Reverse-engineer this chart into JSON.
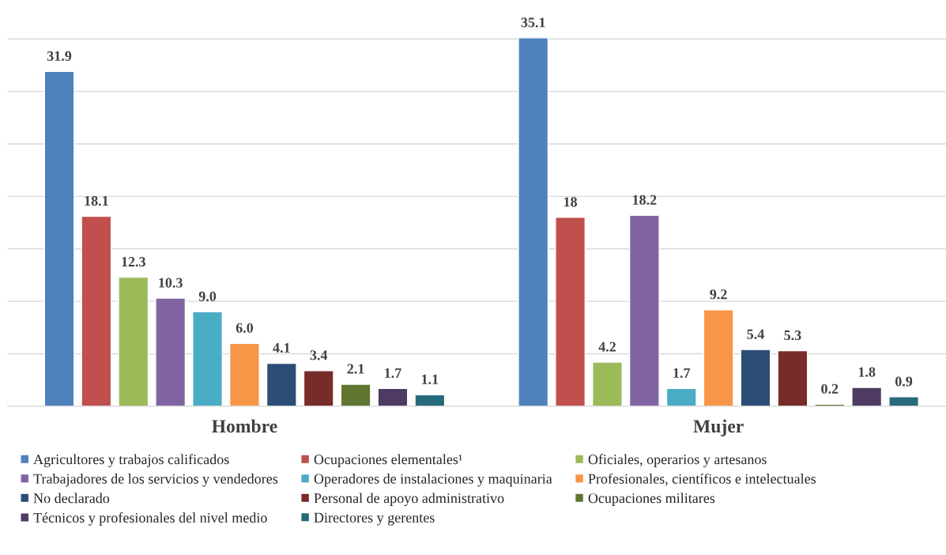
{
  "chart_data": {
    "type": "bar",
    "categories": [
      "Hombre",
      "Mujer"
    ],
    "series": [
      {
        "name": "Agricultores y trabajos calificados",
        "color": "#4f81bd",
        "values": [
          31.9,
          35.1
        ],
        "value_labels": [
          "31.9",
          "35.1"
        ]
      },
      {
        "name": "Ocupaciones elementales¹",
        "color": "#c0504d",
        "values": [
          18.1,
          18
        ],
        "value_labels": [
          "18.1",
          "18"
        ]
      },
      {
        "name": "Oficiales, operarios y artesanos",
        "color": "#9bbb59",
        "values": [
          12.3,
          4.2
        ],
        "value_labels": [
          "12.3",
          "4.2"
        ]
      },
      {
        "name": "Trabajadores de los servicios y vendedores",
        "color": "#8064a2",
        "values": [
          10.3,
          18.2
        ],
        "value_labels": [
          "10.3",
          "18.2"
        ]
      },
      {
        "name": "Operadores de instalaciones y maquinaria",
        "color": "#4bacc6",
        "values": [
          9.0,
          1.7
        ],
        "value_labels": [
          "9.0",
          "1.7"
        ]
      },
      {
        "name": "Profesionales, científicos e intelectuales",
        "color": "#f79646",
        "values": [
          6.0,
          9.2
        ],
        "value_labels": [
          "6.0",
          "9.2"
        ]
      },
      {
        "name": "No declarado",
        "color": "#2c4d75",
        "values": [
          4.1,
          5.4
        ],
        "value_labels": [
          "4.1",
          "5.4"
        ]
      },
      {
        "name": "Personal de apoyo administrativo",
        "color": "#772c2a",
        "values": [
          3.4,
          5.3
        ],
        "value_labels": [
          "3.4",
          "5.3"
        ]
      },
      {
        "name": "Ocupaciones militares",
        "color": "#5f7530",
        "values": [
          2.1,
          0.2
        ],
        "value_labels": [
          "2.1",
          "0.2"
        ]
      },
      {
        "name": "Técnicos y profesionales del nivel medio",
        "color": "#4d3b62",
        "values": [
          1.7,
          1.8
        ],
        "value_labels": [
          "1.7",
          "1.8"
        ]
      },
      {
        "name": "Directores y gerentes",
        "color": "#276a7c",
        "values": [
          1.1,
          0.9
        ],
        "value_labels": [
          "1.1",
          "0.9"
        ]
      }
    ],
    "yticks": [
      {
        "value": 0,
        "label": null
      },
      {
        "value": 5,
        "label": null
      },
      {
        "value": 10,
        "label": null
      },
      {
        "value": 15,
        "label": null
      },
      {
        "value": 20,
        "label": null
      },
      {
        "value": 25,
        "label": null
      },
      {
        "value": 30,
        "label": null
      },
      {
        "value": 35,
        "label": null
      }
    ],
    "tick_labels": "x",
    "grid": "y",
    "legend": "bottom"
  }
}
